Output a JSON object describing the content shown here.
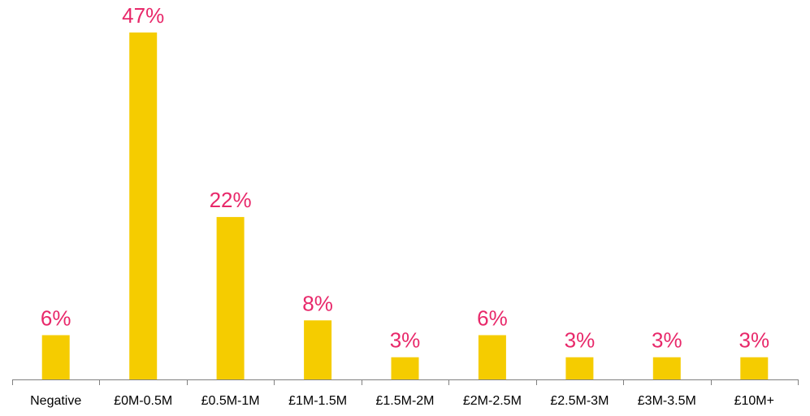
{
  "chart_data": {
    "type": "bar",
    "categories": [
      "Negative",
      "£0M-0.5M",
      "£0.5M-1M",
      "£1M-1.5M",
      "£1.5M-2M",
      "£2M-2.5M",
      "£2.5M-3M",
      "£3M-3.5M",
      "£10M+"
    ],
    "values": [
      6,
      47,
      22,
      8,
      3,
      6,
      3,
      3,
      3
    ],
    "data_labels": [
      "6%",
      "47%",
      "22%",
      "8%",
      "3%",
      "6%",
      "3%",
      "3%",
      "3%"
    ],
    "title": "",
    "xlabel": "",
    "ylabel": "",
    "ylim": [
      0,
      47
    ],
    "grid": false,
    "legend": "none",
    "colors": {
      "bar": "#F5CC00",
      "label": "#E8286A",
      "axis": "#808080"
    }
  }
}
